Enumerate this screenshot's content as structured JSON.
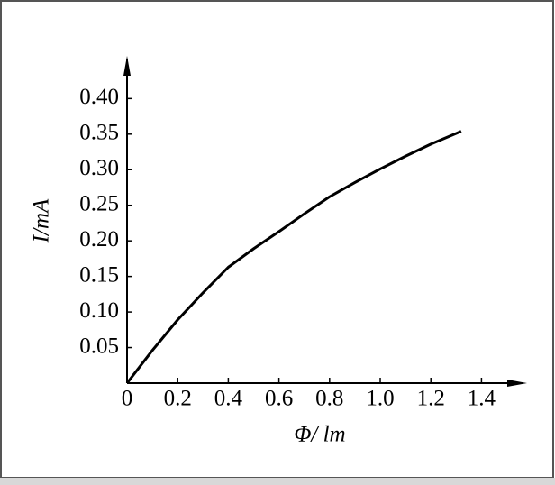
{
  "chart_data": {
    "type": "line",
    "x_label": "Φ/ lm",
    "y_label": "I/mA",
    "x": [
      0,
      0.1,
      0.2,
      0.3,
      0.4,
      0.5,
      0.6,
      0.7,
      0.8,
      0.9,
      1.0,
      1.1,
      1.2,
      1.32
    ],
    "values": [
      0,
      0.046,
      0.089,
      0.127,
      0.163,
      0.189,
      0.213,
      0.238,
      0.262,
      0.282,
      0.301,
      0.319,
      0.336,
      0.354
    ],
    "color": "#000000",
    "xlim": [
      0,
      1.58
    ],
    "ylim": [
      0,
      0.46
    ],
    "xticks": [
      0,
      0.2,
      0.4,
      0.6,
      0.8,
      {
        "value": 1.0,
        "label": "1.0"
      },
      1.2,
      1.4
    ],
    "yticks": [
      0.05,
      {
        "value": 0.1,
        "label": "0.10"
      },
      0.15,
      {
        "value": 0.2,
        "label": "0.20"
      },
      0.25,
      {
        "value": 0.3,
        "label": "0.30"
      },
      0.35,
      {
        "value": 0.4,
        "label": "0.40"
      }
    ]
  }
}
